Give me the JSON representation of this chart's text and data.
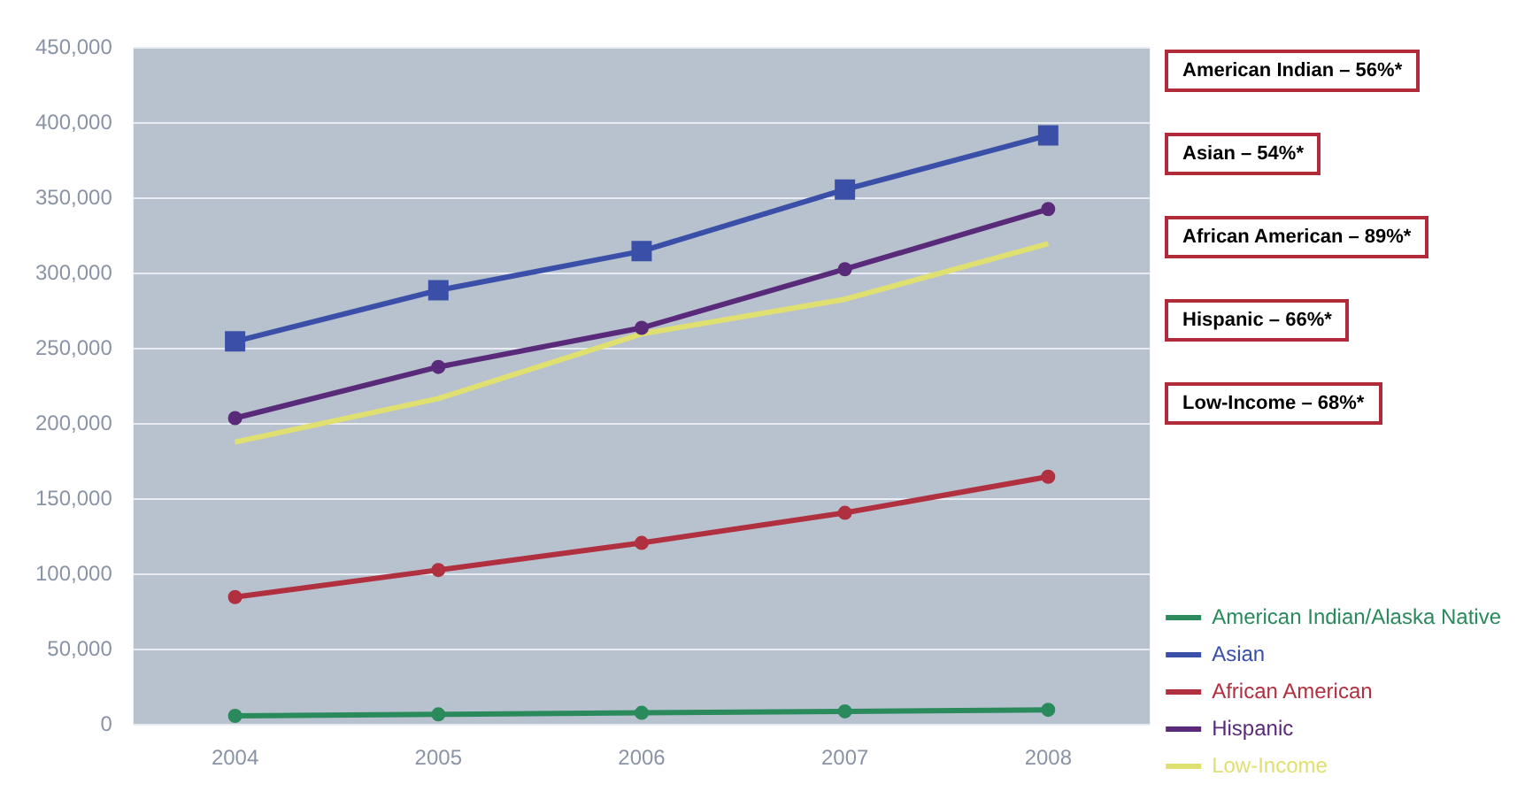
{
  "chart_data": {
    "type": "line",
    "categories": [
      "2004",
      "2005",
      "2006",
      "2007",
      "2008"
    ],
    "series": [
      {
        "name": "American Indian/Alaska Native",
        "color": "#2a8a5c",
        "marker": "circle",
        "values": [
          6000,
          7000,
          8000,
          9000,
          10000
        ]
      },
      {
        "name": "Asian",
        "color": "#3a50a8",
        "marker": "square",
        "values": [
          255000,
          289000,
          315000,
          356000,
          392000
        ]
      },
      {
        "name": "African American",
        "color": "#b03040",
        "marker": "circle",
        "values": [
          85000,
          103000,
          121000,
          141000,
          165000
        ]
      },
      {
        "name": "Hispanic",
        "color": "#5a2a7a",
        "marker": "circle",
        "values": [
          204000,
          238000,
          264000,
          303000,
          343000
        ]
      },
      {
        "name": "Low-Income",
        "color": "#e0e070",
        "marker": "none",
        "values": [
          188000,
          217000,
          260000,
          283000,
          320000
        ]
      }
    ],
    "ylim": [
      0,
      450000
    ],
    "yticks": [
      0,
      {
        "value": 50000,
        "label": "50,000"
      },
      {
        "value": 100000,
        "label": "100,000"
      },
      {
        "value": 150000,
        "label": "150,000"
      },
      {
        "value": 200000,
        "label": "200,000"
      },
      {
        "value": 250000,
        "label": "250,000"
      },
      {
        "value": 300000,
        "label": "300,000"
      },
      {
        "value": 350000,
        "label": "350,000"
      },
      {
        "value": 400000,
        "label": "400,000"
      },
      {
        "value": 450000,
        "label": "450,000"
      }
    ],
    "grid": "y",
    "legend": "bottom right",
    "annotations": [
      "American Indian – 56%*",
      "Asian – 54%*",
      "African American – 89%*",
      "Hispanic – 66%*",
      "Low-Income – 68%*"
    ]
  }
}
